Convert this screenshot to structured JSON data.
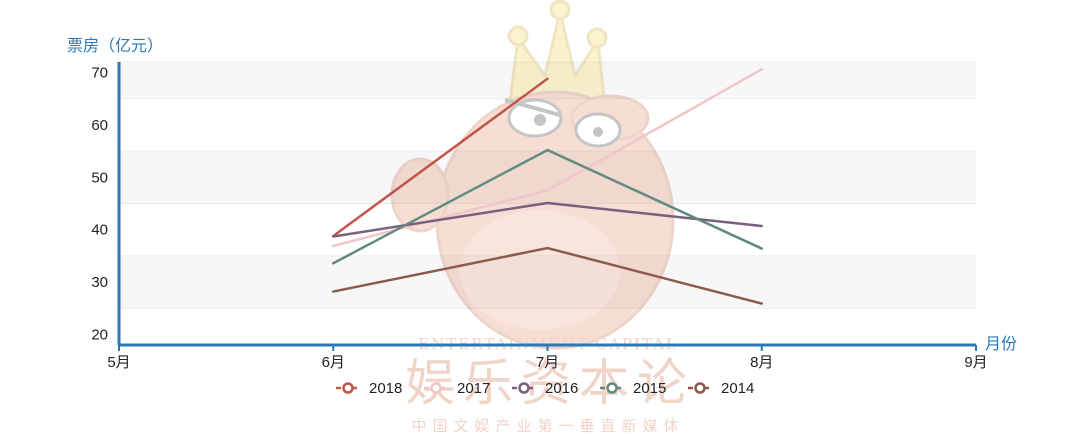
{
  "chart_data": {
    "type": "line",
    "xlabel": "月份",
    "ylabel": "票房（亿元）",
    "categories": [
      "5月",
      "6月",
      "7月",
      "8月",
      "9月"
    ],
    "yticks": [
      20,
      30,
      40,
      50,
      60,
      70
    ],
    "ylim": [
      18,
      72
    ],
    "grid": "horizontal bands",
    "legend_position": "bottom",
    "series": [
      {
        "name": "2018",
        "color": "#c0554a",
        "x": [
          "6月",
          "7月"
        ],
        "values": [
          38.8,
          68.8
        ]
      },
      {
        "name": "2017",
        "color": "#f2c6c6",
        "x": [
          "6月",
          "7月",
          "8月"
        ],
        "values": [
          36.9,
          47.5,
          70.6
        ]
      },
      {
        "name": "2016",
        "color": "#7a5f7f",
        "x": [
          "6月",
          "7月",
          "8月"
        ],
        "values": [
          38.7,
          45.1,
          40.7
        ]
      },
      {
        "name": "2015",
        "color": "#5f8c7c",
        "x": [
          "6月",
          "7月",
          "8月"
        ],
        "values": [
          33.6,
          55.2,
          36.4
        ]
      },
      {
        "name": "2014",
        "color": "#8c5a4c",
        "x": [
          "6月",
          "7月",
          "8月"
        ],
        "values": [
          28.2,
          36.5,
          25.9
        ]
      }
    ]
  },
  "watermark": {
    "line1": "ENTERTAINMENT CAPITAL",
    "line2": "娱乐资本论",
    "line3": "中国文娱产业第一垂直新媒体"
  }
}
